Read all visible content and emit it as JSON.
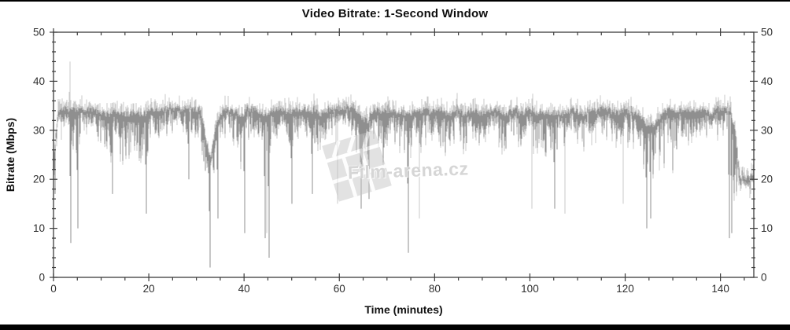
{
  "title_bar": {
    "top_bar": "letterbox",
    "bottom_bar": "letterbox"
  },
  "watermark": {
    "text": "Film-arena.cz",
    "icon": "clapperboard-icon"
  },
  "colors": {
    "background": "#ffffff",
    "letterbox": "#000000",
    "axis": "#3c3c3c",
    "tick_label": "#2e2e2e",
    "title": "#0d0d0d",
    "series_light": "#c9c9c9",
    "series_dark": "#8f8f8f",
    "watermark": "#c8c8c8"
  },
  "chart_data": {
    "type": "line",
    "title": "Video Bitrate: 1-Second Window",
    "xlabel": "Time (minutes)",
    "ylabel": "Bitrate (Mbps)",
    "xlim": [
      0,
      147
    ],
    "ylim": [
      0,
      50
    ],
    "x_major_ticks": [
      0,
      20,
      40,
      60,
      80,
      100,
      120,
      140
    ],
    "x_minor_step": 5,
    "y_major_ticks": [
      0,
      10,
      20,
      30,
      40,
      50
    ],
    "y_minor_step": 2,
    "y_labels_both_sides": true,
    "grid": false,
    "legend": "none",
    "noise_seed": 7,
    "series": [
      {
        "name": "frame-peak-envelope",
        "color": "#c9c9c9",
        "description": "light-gray peak trace rising 1-3 Mbps above the 1-second trace",
        "up_spikes": [
          [
            3.4,
            44
          ]
        ],
        "down_spikes": [
          [
            32.8,
            4
          ],
          [
            44.8,
            9
          ],
          [
            59.7,
            15
          ],
          [
            76.8,
            12
          ],
          [
            100.5,
            14
          ],
          [
            107.3,
            13
          ],
          [
            119.6,
            15
          ],
          [
            146.3,
            17
          ]
        ]
      },
      {
        "name": "one-second-window",
        "color": "#8f8f8f",
        "t_step_minutes": 1,
        "top_envelope": [
          24,
          33.5,
          34,
          34,
          34,
          33.5,
          34,
          34,
          34,
          33.5,
          33.5,
          33,
          33,
          33.5,
          33,
          33,
          33,
          33.5,
          33,
          33,
          33.5,
          34,
          34,
          34,
          34,
          34,
          34.2,
          34,
          34,
          34,
          34,
          33.5,
          28,
          24,
          30,
          33,
          34,
          34,
          33.5,
          33,
          33,
          34,
          34,
          33.5,
          33,
          33,
          34,
          34,
          34,
          33.5,
          33.5,
          34,
          34,
          34,
          33.5,
          34,
          33,
          33.5,
          34,
          34,
          34.2,
          34.2,
          34,
          34,
          33,
          32,
          31.5,
          33.5,
          34,
          33.5,
          33.5,
          34,
          33.5,
          33.5,
          33,
          33,
          34,
          33.5,
          34,
          33.5,
          33.5,
          34,
          33.5,
          33,
          33.5,
          34,
          33,
          33.5,
          34,
          33.5,
          33,
          33.5,
          34,
          34,
          33.5,
          33,
          33.5,
          34,
          33,
          33.5,
          34,
          33,
          33.5,
          33,
          33.5,
          33,
          33.5,
          33,
          33.5,
          34,
          33.5,
          33,
          33.5,
          34,
          33.5,
          34,
          34,
          33.5,
          33,
          33.5,
          34,
          33.5,
          33,
          32.5,
          31.5,
          30.5,
          30.5,
          32,
          33,
          34,
          33.5,
          33.5,
          34,
          34,
          33,
          34,
          34,
          33.5,
          33,
          34,
          34.2,
          34,
          34,
          30,
          20.2,
          20,
          20,
          20.5
        ],
        "dip_depth": [
          6,
          3,
          3,
          4,
          8,
          9,
          4,
          4,
          5,
          7,
          6,
          7,
          10,
          6,
          9,
          11,
          8,
          6,
          10,
          12,
          8,
          5,
          6,
          4,
          6,
          4,
          3,
          4,
          8,
          5,
          6,
          8,
          8,
          6,
          8,
          6,
          5,
          6,
          7,
          9,
          10,
          6,
          5,
          8,
          9,
          10,
          6,
          5,
          6,
          7,
          8,
          5,
          6,
          5,
          7,
          7,
          9,
          7,
          5,
          4,
          3,
          4,
          5,
          6,
          12,
          12,
          12,
          6,
          6,
          8,
          6,
          5,
          8,
          6,
          8,
          8,
          6,
          7,
          6,
          7,
          6,
          5,
          7,
          8,
          6,
          5,
          8,
          6,
          5,
          7,
          8,
          6,
          5,
          4,
          7,
          8,
          6,
          5,
          8,
          6,
          5,
          8,
          6,
          9,
          7,
          10,
          6,
          8,
          6,
          5,
          7,
          8,
          6,
          5,
          7,
          4,
          6,
          7,
          8,
          6,
          5,
          7,
          8,
          9,
          10,
          9,
          10,
          7,
          8,
          6,
          8,
          6,
          5,
          6,
          8,
          6,
          5,
          6,
          7,
          5,
          4,
          5,
          4,
          14,
          1.5,
          1.5,
          2,
          2
        ],
        "deep_spikes": [
          [
            0.3,
            17
          ],
          [
            3.7,
            7
          ],
          [
            5.2,
            10
          ],
          [
            12.4,
            17
          ],
          [
            19.5,
            13
          ],
          [
            28.4,
            20
          ],
          [
            32.8,
            2
          ],
          [
            34.5,
            12
          ],
          [
            40.2,
            9
          ],
          [
            44.4,
            8
          ],
          [
            45.2,
            4
          ],
          [
            50.0,
            15
          ],
          [
            54.4,
            17
          ],
          [
            64.5,
            14
          ],
          [
            66.2,
            16
          ],
          [
            74.5,
            5
          ],
          [
            105.2,
            14
          ],
          [
            124.6,
            10
          ],
          [
            125.4,
            12
          ],
          [
            141.8,
            8
          ],
          [
            142.4,
            9
          ]
        ]
      }
    ]
  }
}
